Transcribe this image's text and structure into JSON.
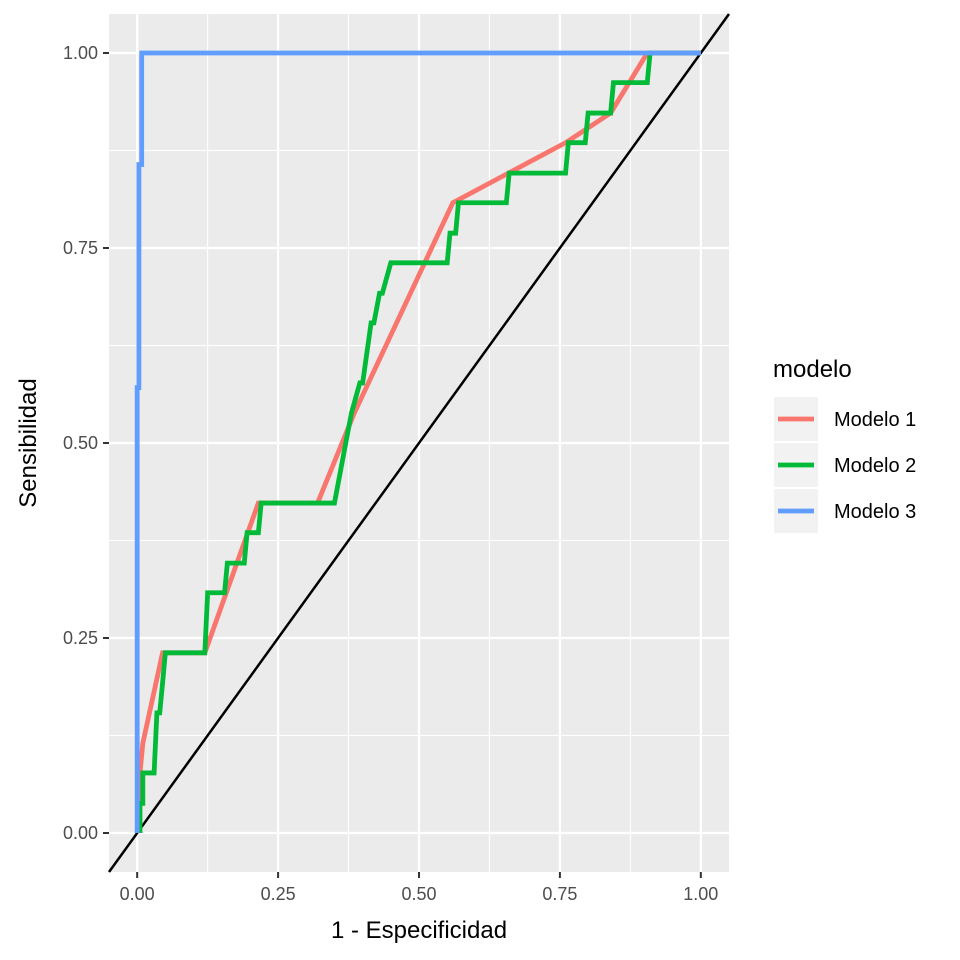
{
  "chart_data": {
    "type": "line",
    "title": "",
    "xlabel": "1 - Especificidad",
    "ylabel": "Sensibilidad",
    "xlim": [
      -0.05,
      1.05
    ],
    "ylim": [
      -0.05,
      1.05
    ],
    "x_ticks": [
      0,
      0.25,
      0.5,
      0.75,
      1
    ],
    "y_ticks": [
      0,
      0.25,
      0.5,
      0.75,
      1
    ],
    "x_tick_labels": [
      "0.00",
      "0.25",
      "0.50",
      "0.75",
      "1.00"
    ],
    "y_tick_labels": [
      "0.00",
      "0.25",
      "0.50",
      "0.75",
      "1.00"
    ],
    "grid": true,
    "legend_position": "right",
    "legend_title": "modelo",
    "background_color": "#ebebeb",
    "reference_line": {
      "x": [
        -0.05,
        1.05
      ],
      "y": [
        -0.05,
        1.05
      ],
      "color": "#000000"
    },
    "series": [
      {
        "name": "Modelo 1",
        "color": "#f8766d",
        "x": [
          0.0,
          0.005,
          0.01,
          0.045,
          0.12,
          0.215,
          0.32,
          0.385,
          0.56,
          0.76,
          0.84,
          0.905,
          1.0
        ],
        "y": [
          0.0,
          0.077,
          0.115,
          0.231,
          0.231,
          0.423,
          0.423,
          0.538,
          0.808,
          0.885,
          0.923,
          1.0,
          1.0
        ]
      },
      {
        "name": "Modelo 2",
        "color": "#00ba38",
        "x": [
          0.005,
          0.005,
          0.01,
          0.01,
          0.03,
          0.035,
          0.04,
          0.045,
          0.05,
          0.12,
          0.125,
          0.155,
          0.16,
          0.19,
          0.195,
          0.215,
          0.22,
          0.35,
          0.38,
          0.395,
          0.4,
          0.415,
          0.42,
          0.43,
          0.435,
          0.45,
          0.455,
          0.465,
          0.47,
          0.55,
          0.555,
          0.565,
          0.57,
          0.655,
          0.66,
          0.76,
          0.765,
          0.795,
          0.8,
          0.84,
          0.845,
          0.905,
          0.91,
          1.0
        ],
        "y": [
          0.0,
          0.038,
          0.038,
          0.077,
          0.077,
          0.154,
          0.154,
          0.192,
          0.231,
          0.231,
          0.308,
          0.308,
          0.346,
          0.346,
          0.385,
          0.385,
          0.423,
          0.423,
          0.538,
          0.577,
          0.577,
          0.654,
          0.654,
          0.692,
          0.692,
          0.731,
          0.731,
          0.731,
          0.731,
          0.731,
          0.769,
          0.769,
          0.808,
          0.808,
          0.846,
          0.846,
          0.885,
          0.885,
          0.923,
          0.923,
          0.962,
          0.962,
          1.0,
          1.0
        ]
      },
      {
        "name": "Modelo 3",
        "color": "#619cff",
        "x": [
          0.0,
          0.0,
          0.003,
          0.003,
          0.005,
          0.005,
          0.008,
          0.008,
          1.0
        ],
        "y": [
          0.0,
          0.571,
          0.571,
          0.857,
          0.857,
          0.857,
          0.857,
          1.0,
          1.0
        ]
      }
    ]
  }
}
